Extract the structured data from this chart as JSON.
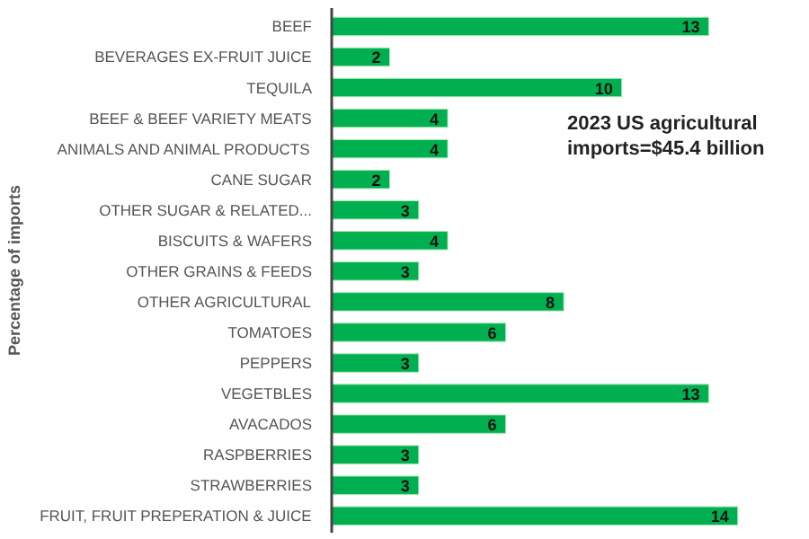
{
  "chart_data": {
    "type": "bar",
    "orientation": "horizontal",
    "ylabel": "Percentage of imports",
    "categories": [
      "BEEF",
      "BEVERAGES EX-FRUIT JUICE",
      "TEQUILA",
      "BEEF & BEEF VARIETY MEATS",
      "ANIMALS AND ANIMAL PRODUCTS",
      "CANE SUGAR",
      "OTHER SUGAR & RELATED...",
      "BISCUITS & WAFERS",
      "OTHER GRAINS & FEEDS",
      "OTHER AGRICULTURAL",
      "TOMATOES",
      "PEPPERS",
      "VEGETBLES",
      "AVACADOS",
      "RASPBERRIES",
      "STRAWBERRIES",
      "FRUIT, FRUIT PREPERATION & JUICE"
    ],
    "values": [
      13,
      2,
      10,
      4,
      4,
      2,
      3,
      4,
      3,
      8,
      6,
      3,
      13,
      6,
      3,
      3,
      14
    ],
    "color": "#00b050",
    "data_labels": true,
    "grid": false,
    "annotations": [
      "2023 US agricultural imports=$45.4 billion"
    ]
  }
}
